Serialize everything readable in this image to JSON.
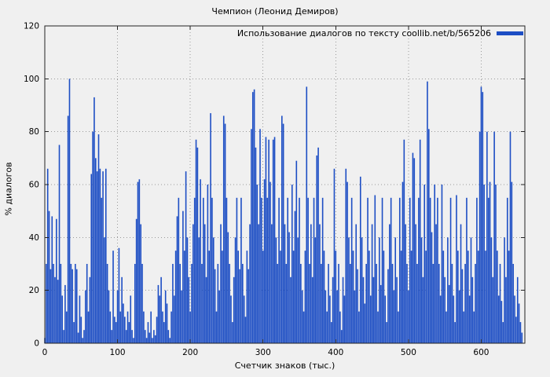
{
  "page": {
    "background": "#f0f0f0"
  },
  "chart_data": {
    "type": "bar",
    "title": "Чемпион (Леонид Демиров)",
    "legend": "Использование диалогов по тексту coollib.net/b/565206",
    "xlabel": "Счетчик знаков (тыс.)",
    "ylabel": "% диалогов",
    "xlim": [
      0,
      660
    ],
    "ylim": [
      0,
      120
    ],
    "xticks": [
      0,
      100,
      200,
      300,
      400,
      500,
      600
    ],
    "yticks": [
      0,
      20,
      40,
      60,
      80,
      100,
      120
    ],
    "grid": true,
    "legend_position": "top-right",
    "bar_color": "#1d4ec4",
    "x_step": 2,
    "values": [
      2,
      30,
      66,
      50,
      28,
      48,
      30,
      25,
      47,
      24,
      75,
      30,
      18,
      5,
      22,
      12,
      86,
      100,
      30,
      28,
      8,
      30,
      28,
      4,
      18,
      10,
      2,
      5,
      20,
      30,
      12,
      25,
      64,
      80,
      93,
      70,
      65,
      79,
      66,
      55,
      65,
      40,
      66,
      30,
      20,
      12,
      5,
      35,
      10,
      8,
      20,
      36,
      12,
      25,
      15,
      10,
      5,
      12,
      8,
      18,
      5,
      2,
      30,
      47,
      61,
      62,
      45,
      30,
      12,
      5,
      2,
      8,
      4,
      12,
      2,
      5,
      3,
      10,
      22,
      18,
      25,
      12,
      8,
      20,
      15,
      5,
      2,
      12,
      30,
      18,
      35,
      48,
      55,
      30,
      20,
      50,
      35,
      65,
      40,
      25,
      12,
      30,
      45,
      55,
      77,
      74,
      40,
      62,
      30,
      55,
      45,
      25,
      60,
      35,
      87,
      55,
      40,
      28,
      12,
      30,
      20,
      45,
      35,
      86,
      83,
      55,
      42,
      30,
      18,
      8,
      25,
      40,
      55,
      35,
      28,
      55,
      30,
      18,
      10,
      35,
      28,
      45,
      81,
      95,
      96,
      74,
      60,
      45,
      81,
      55,
      35,
      62,
      78,
      55,
      77,
      61,
      45,
      77,
      78,
      40,
      30,
      55,
      35,
      86,
      83,
      45,
      30,
      55,
      42,
      25,
      60,
      35,
      50,
      69,
      40,
      55,
      30,
      20,
      12,
      35,
      97,
      55,
      30,
      45,
      25,
      55,
      40,
      71,
      74,
      45,
      30,
      55,
      35,
      20,
      12,
      30,
      18,
      8,
      25,
      66,
      35,
      20,
      30,
      12,
      5,
      25,
      18,
      66,
      61,
      40,
      30,
      55,
      35,
      20,
      45,
      28,
      12,
      63,
      40,
      25,
      15,
      30,
      55,
      35,
      18,
      45,
      25,
      56,
      30,
      12,
      40,
      22,
      55,
      35,
      18,
      8,
      28,
      45,
      55,
      30,
      20,
      40,
      25,
      12,
      55,
      35,
      61,
      77,
      45,
      30,
      20,
      55,
      35,
      72,
      70,
      45,
      30,
      55,
      77,
      40,
      25,
      60,
      35,
      99,
      81,
      55,
      42,
      30,
      60,
      45,
      55,
      30,
      18,
      60,
      35,
      25,
      12,
      40,
      22,
      55,
      30,
      18,
      8,
      56,
      35,
      20,
      45,
      28,
      12,
      30,
      55,
      35,
      18,
      40,
      25,
      12,
      30,
      55,
      35,
      80,
      97,
      95,
      60,
      35,
      80,
      55,
      61,
      40,
      25,
      80,
      60,
      35,
      18,
      30,
      16,
      8,
      40,
      25,
      55,
      35,
      80,
      61,
      30,
      18,
      10,
      25,
      15,
      8,
      4
    ]
  }
}
